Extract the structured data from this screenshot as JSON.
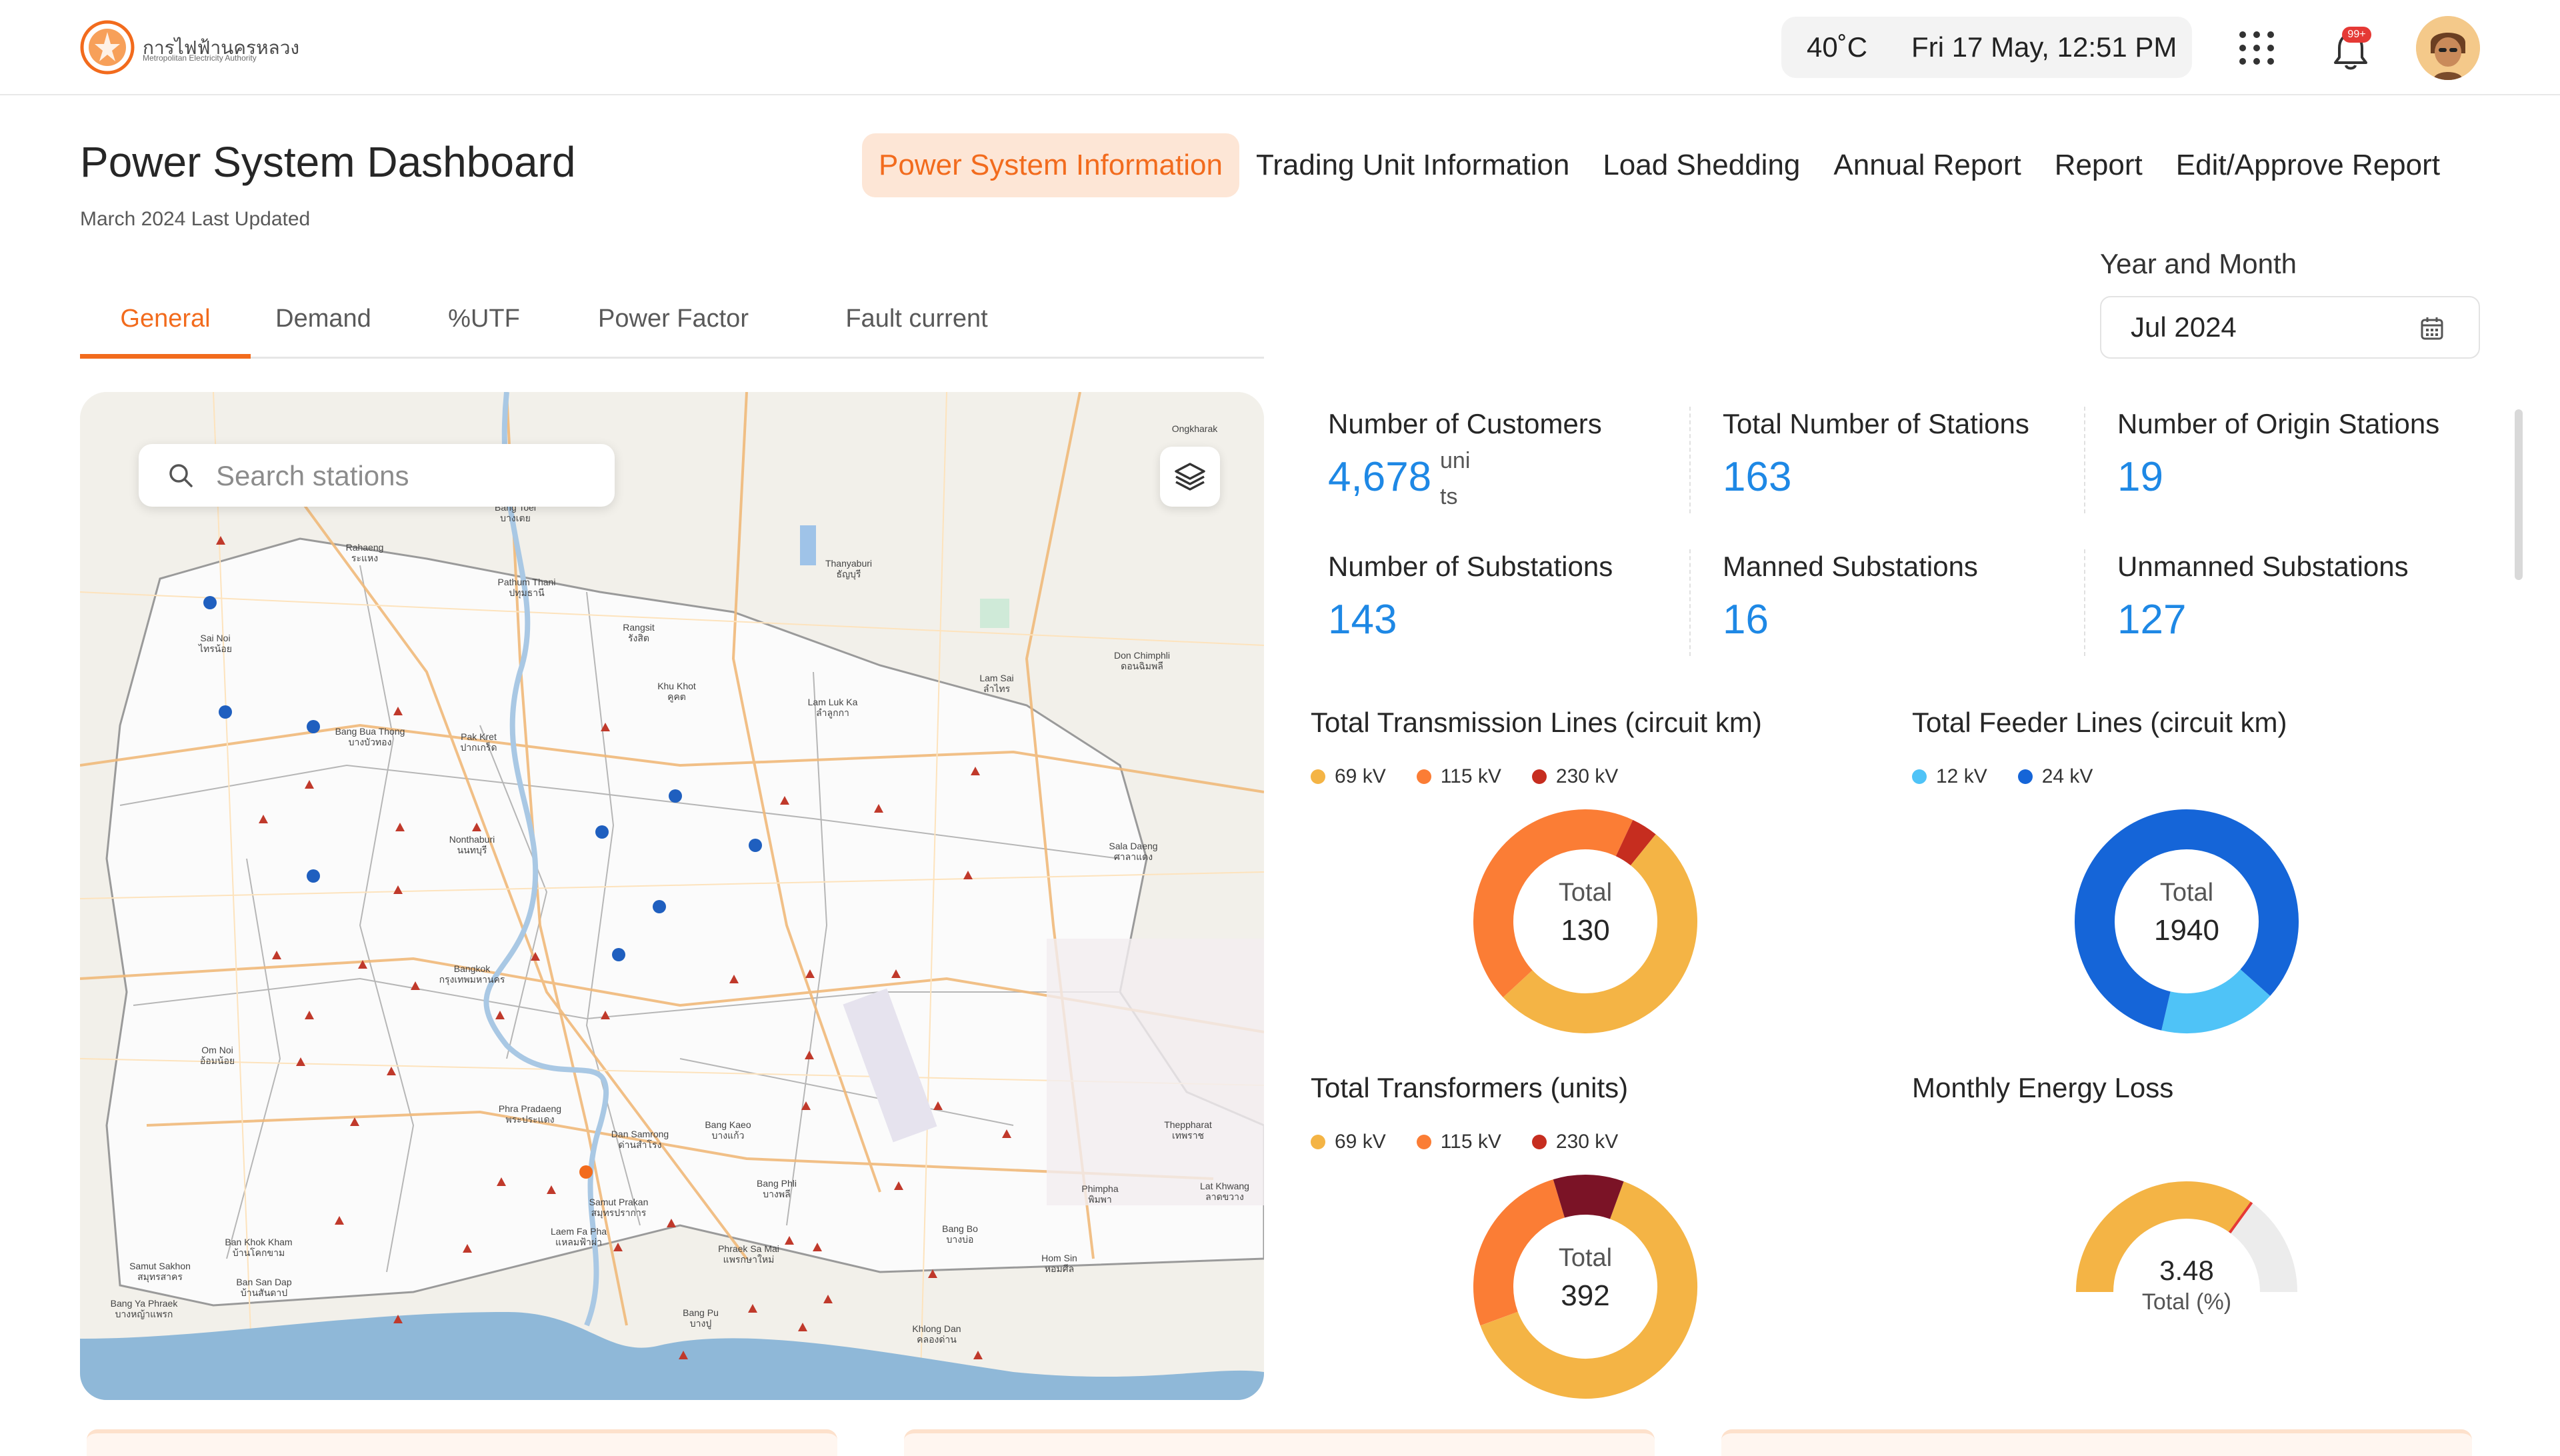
{
  "header": {
    "logo_text_th": "การไฟฟ้านครหลวง",
    "logo_text_en": "Metropolitan Electricity Authority",
    "temperature": "40˚C",
    "datetime": "Fri 17 May, 12:51 PM",
    "notification_count": "99+"
  },
  "page": {
    "title": "Power System Dashboard",
    "subtitle": "March 2024  Last Updated"
  },
  "main_nav": [
    {
      "label": "Power System Information",
      "active": true
    },
    {
      "label": "Trading Unit Information",
      "active": false
    },
    {
      "label": "Load Shedding",
      "active": false
    },
    {
      "label": "Annual Report",
      "active": false
    },
    {
      "label": "Report",
      "active": false
    },
    {
      "label": "Edit/Approve Report",
      "active": false
    }
  ],
  "sub_tabs": [
    {
      "label": "General",
      "active": true
    },
    {
      "label": "Demand",
      "active": false
    },
    {
      "label": "%UTF",
      "active": false
    },
    {
      "label": "Power Factor",
      "active": false
    },
    {
      "label": "Fault current",
      "active": false
    }
  ],
  "filter": {
    "label": "Year and Month",
    "value": "Jul 2024"
  },
  "map": {
    "search_placeholder": "Search stations",
    "place_labels": [
      {
        "en": "Ongkharak",
        "th": ""
      },
      {
        "en": "Bang Toei",
        "th": "บางเตย"
      },
      {
        "en": "Rahaeng",
        "th": "ระแหง"
      },
      {
        "en": "Pathum Thani",
        "th": "ปทุมธานี"
      },
      {
        "en": "Thanyaburi",
        "th": "ธัญบุรี"
      },
      {
        "en": "Sai Noi",
        "th": "ไทรน้อย"
      },
      {
        "en": "Rangsit",
        "th": "รังสิต"
      },
      {
        "en": "Don Chimphli",
        "th": "ดอนฉิมพลี"
      },
      {
        "en": "Lam Sai",
        "th": "ลำไทร"
      },
      {
        "en": "Khu Khot",
        "th": "คูคต"
      },
      {
        "en": "Lam Luk Ka",
        "th": "ลำลูกกา"
      },
      {
        "en": "Bang Bua Thong",
        "th": "บางบัวทอง"
      },
      {
        "en": "Pak Kret",
        "th": "ปากเกร็ด"
      },
      {
        "en": "Nonthaburi",
        "th": "นนทบุรี"
      },
      {
        "en": "Sala Daeng",
        "th": "ศาลาแดง"
      },
      {
        "en": "Bangkok",
        "th": "กรุงเทพมหานคร"
      },
      {
        "en": "Om Noi",
        "th": "อ้อมน้อย"
      },
      {
        "en": "Phra Pradaeng",
        "th": "พระประแดง"
      },
      {
        "en": "Dan Samrong",
        "th": "ด่านสำโรง"
      },
      {
        "en": "Bang Kaeo",
        "th": "บางแก้ว"
      },
      {
        "en": "Theppharat",
        "th": "เทพราช"
      },
      {
        "en": "Bang Phli",
        "th": "บางพลี"
      },
      {
        "en": "Samut Prakan",
        "th": "สมุทรปราการ"
      },
      {
        "en": "Phimpha",
        "th": "พิมพา"
      },
      {
        "en": "Lat Khwang",
        "th": "ลาดขวาง"
      },
      {
        "en": "Ban Khok Kham",
        "th": "บ้านโคกขาม"
      },
      {
        "en": "Laem Fa Pha",
        "th": "แหลมฟ้าผ่า"
      },
      {
        "en": "Phraek Sa Mai",
        "th": "แพรกษาใหม่"
      },
      {
        "en": "Bang Bo",
        "th": "บางบ่อ"
      },
      {
        "en": "Hom Sin",
        "th": "หอมศีล"
      },
      {
        "en": "Samut Sakhon",
        "th": "สมุทรสาคร"
      },
      {
        "en": "Ban San Dap",
        "th": "บ้านสันดาป"
      },
      {
        "en": "Bang Ya Phraek",
        "th": "บางหญ้าแพรก"
      },
      {
        "en": "Bang Pu",
        "th": "บางปู"
      },
      {
        "en": "Khlong Dan",
        "th": "คลองด่าน"
      }
    ]
  },
  "stats": [
    {
      "label": "Number of Customers",
      "value": "4,678",
      "unit": "units"
    },
    {
      "label": "Total Number of Stations",
      "value": "163"
    },
    {
      "label": "Number of Origin Stations",
      "value": "19"
    },
    {
      "label": "Number of Substations",
      "value": "143"
    },
    {
      "label": "Manned Substations",
      "value": "16"
    },
    {
      "label": "Unmanned Substations",
      "value": "127"
    }
  ],
  "colors": {
    "accent": "#f26b1d",
    "stat_blue": "#1e88e5",
    "kv69": "#f4b445",
    "kv115": "#fb7d35",
    "kv230": "#c62d1f",
    "kv12": "#4fc3f7",
    "kv24": "#1565d8",
    "transformer230": "#7b1326",
    "gauge_track": "#ececec",
    "gauge_marker": "#e53935"
  },
  "chart_data": [
    {
      "type": "pie",
      "donut": true,
      "title": "Total Transmission Lines (circuit km)",
      "center_label": "Total",
      "center_value": "130",
      "series": [
        {
          "name": "69 kV",
          "value": 68
        },
        {
          "name": "115 kV",
          "value": 57
        },
        {
          "name": "230 kV",
          "value": 5
        }
      ]
    },
    {
      "type": "pie",
      "donut": true,
      "title": "Total Feeder Lines (circuit km)",
      "center_label": "Total",
      "center_value": "1940",
      "series": [
        {
          "name": "12 kV",
          "value": 330
        },
        {
          "name": "24 kV",
          "value": 1610
        }
      ]
    },
    {
      "type": "pie",
      "donut": true,
      "title": "Total Transformers (units)",
      "center_label": "Total",
      "center_value": "392",
      "series": [
        {
          "name": "69 kV",
          "value": 250
        },
        {
          "name": "115 kV",
          "value": 102
        },
        {
          "name": "230 kV",
          "value": 40
        }
      ]
    },
    {
      "type": "gauge",
      "title": "Monthly Energy Loss",
      "value": 3.48,
      "value_label": "3.48",
      "center_label": "Total (%)",
      "fill_fraction": 0.7
    }
  ]
}
